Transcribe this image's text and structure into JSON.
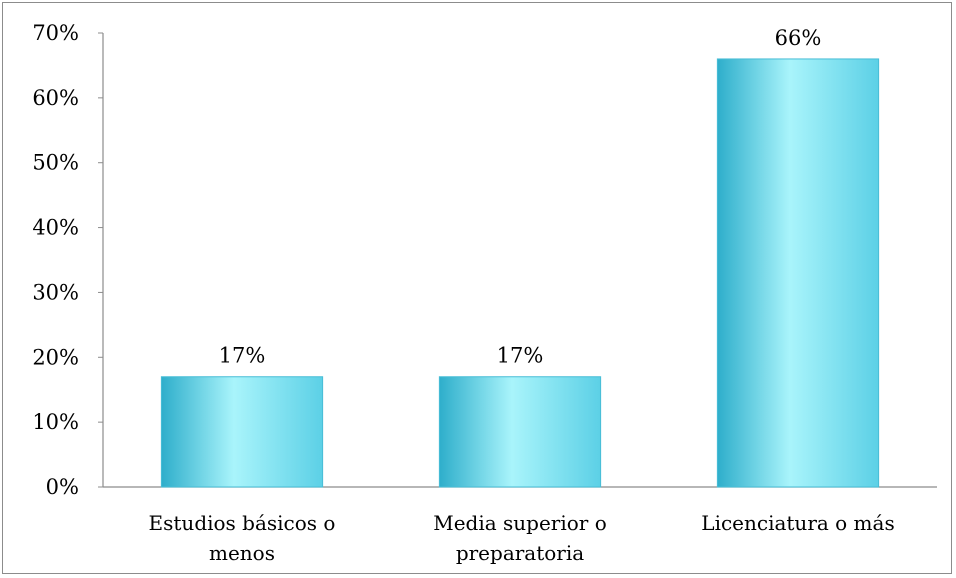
{
  "chart_data": {
    "type": "bar",
    "categories": [
      [
        "Estudios básicos o",
        "menos"
      ],
      [
        "Media superior o",
        "preparatoria"
      ],
      [
        "Licenciatura o más"
      ]
    ],
    "values": [
      17,
      17,
      66
    ],
    "data_labels": [
      "17%",
      "17%",
      "66%"
    ],
    "ylim": [
      0,
      70
    ],
    "yticks": [
      0,
      10,
      20,
      30,
      40,
      50,
      60,
      70
    ],
    "ytick_labels": [
      "0%",
      "10%",
      "20%",
      "30%",
      "40%",
      "50%",
      "60%",
      "70%"
    ],
    "grid": false,
    "legend": "none",
    "bar_color": "#5cd0e6",
    "bar_color_light": "#a9f4fb",
    "bar_color_dark": "#2eaecb"
  }
}
